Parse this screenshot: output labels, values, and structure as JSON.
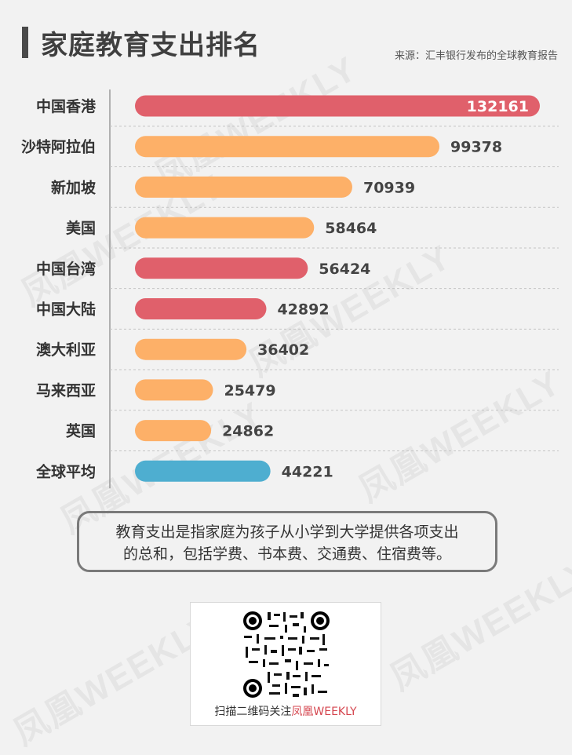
{
  "header": {
    "title": "家庭教育支出排名",
    "source": "来源：汇丰银行发布的全球教育报告"
  },
  "chart_data": {
    "type": "bar",
    "orientation": "horizontal",
    "categories": [
      "中国香港",
      "沙特阿拉伯",
      "新加坡",
      "美国",
      "中国台湾",
      "中国大陆",
      "澳大利亚",
      "马来西亚",
      "英国",
      "全球平均"
    ],
    "values": [
      132161,
      99378,
      70939,
      58464,
      56424,
      42892,
      36402,
      25479,
      24862,
      44221
    ],
    "value_labels": [
      "132161",
      "99378",
      "70939",
      "58464",
      "56424",
      "42892",
      "36402",
      "25479",
      "24862",
      "44221"
    ],
    "colors": [
      "#e0606b",
      "#fdb068",
      "#fdb068",
      "#fdb068",
      "#e0606b",
      "#e0606b",
      "#fdb068",
      "#fdb068",
      "#fdb068",
      "#4eaed0"
    ],
    "title": "家庭教育支出排名",
    "grid": false
  },
  "note": {
    "line1": "教育支出是指家庭为孩子从小学到大学提供各项支出",
    "line2": "的总和，包括学费、书本费、交通费、住宿费等。"
  },
  "qr": {
    "caption": "扫描二维码关注",
    "brand": "凤凰WEEKLY"
  },
  "watermark_text": "凤凰WEEKLY"
}
